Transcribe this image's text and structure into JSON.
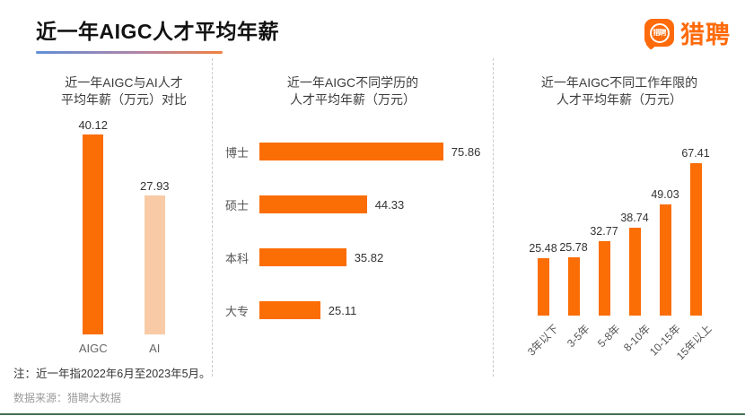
{
  "header": {
    "title": "近一年AIGC人才平均年薪",
    "logo": {
      "icon_text": "猎聘",
      "wordmark": "猎聘"
    }
  },
  "footer": {
    "note": "注：近一年指2022年6月至2023年5月。",
    "source": "数据来源：猎聘大数据"
  },
  "colors": {
    "bar_orange": "#fb6d05",
    "bar_light_orange": "#f8cba6",
    "brand_orange": "#ff6a0a",
    "underline_gradient": [
      "#5f8fd6",
      "#b083a6",
      "#f2803f"
    ],
    "footer_line_green": "#456f52"
  },
  "chart_data": [
    {
      "type": "bar",
      "orientation": "vertical",
      "title": "近一年AIGC与AI人才平均年薪（万元）对比",
      "title_lines": [
        "近一年AIGC与AI人才",
        "平均年薪（万元）对比"
      ],
      "unit": "万元",
      "categories": [
        "AIGC",
        "AI"
      ],
      "values": [
        40.12,
        27.93
      ],
      "bar_colors": [
        "#fb6d05",
        "#f8cba6"
      ],
      "grid": false,
      "legend": "none"
    },
    {
      "type": "bar",
      "orientation": "horizontal",
      "title": "近一年AIGC不同学历的人才平均年薪（万元）",
      "title_lines": [
        "近一年AIGC不同学历的",
        "人才平均年薪（万元）"
      ],
      "unit": "万元",
      "categories": [
        "博士",
        "硕士",
        "本科",
        "大专"
      ],
      "values": [
        75.86,
        44.33,
        35.82,
        25.11
      ],
      "bar_colors": [
        "#fb6d05",
        "#fb6d05",
        "#fb6d05",
        "#fb6d05"
      ],
      "grid": false,
      "legend": "none"
    },
    {
      "type": "bar",
      "orientation": "vertical",
      "title": "近一年AIGC不同工作年限的人才平均年薪（万元）",
      "title_lines": [
        "近一年AIGC不同工作年限的",
        "人才平均年薪（万元）"
      ],
      "unit": "万元",
      "categories": [
        "3年以下",
        "3-5年",
        "5-8年",
        "8-10年",
        "10-15年",
        "15年以上"
      ],
      "values": [
        25.48,
        25.78,
        32.77,
        38.74,
        49.03,
        67.41
      ],
      "bar_colors": [
        "#fb6d05",
        "#fb6d05",
        "#fb6d05",
        "#fb6d05",
        "#fb6d05",
        "#fb6d05"
      ],
      "grid": false,
      "legend": "none"
    }
  ]
}
